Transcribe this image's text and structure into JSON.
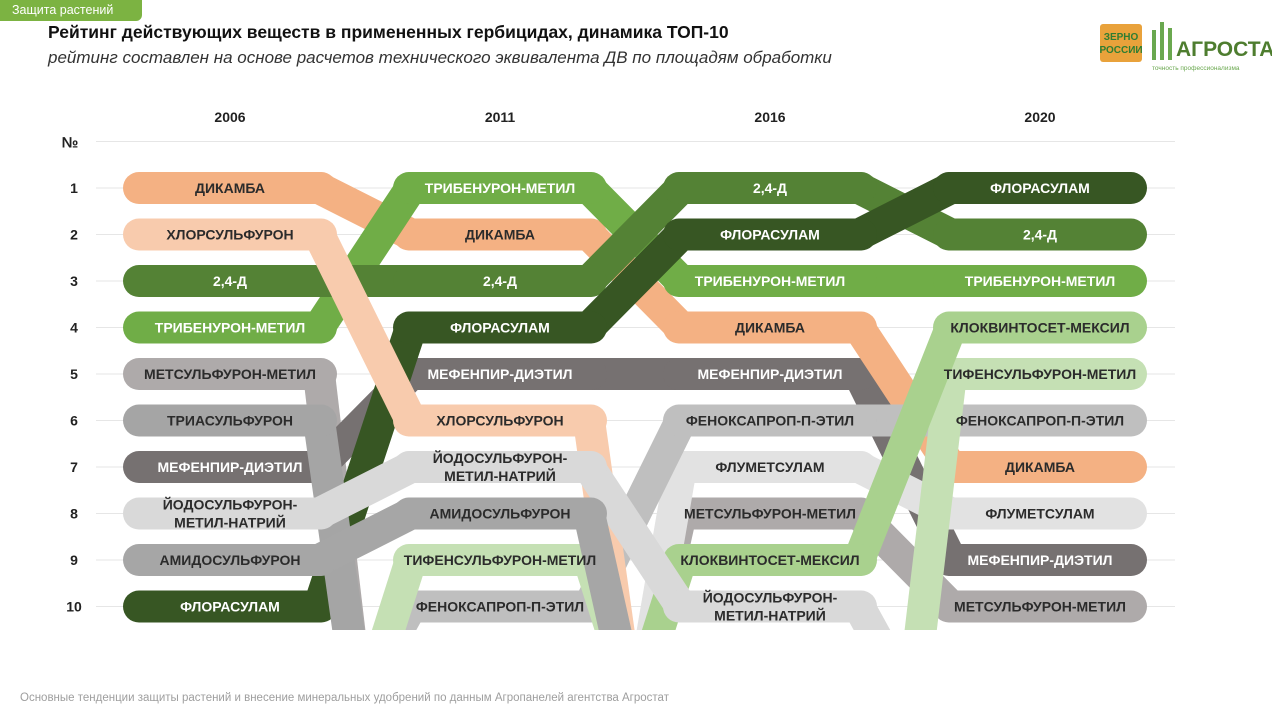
{
  "header": {
    "section_tag": "Защита растений",
    "title": "Рейтинг действующих веществ в примененных гербицидах, динамика ТОП-10",
    "subtitle": "рейтинг составлен на основе расчетов технического эквивалента ДВ по площадям обработки"
  },
  "logo": {
    "zerno_line1": "ЗЕРНО",
    "zerno_line2": "РОССИИ",
    "brand": "АГРОСТАТ",
    "tagline": "точность профессионализма"
  },
  "footer": "Основные тенденции защиты растений и внесение минеральных удобрений  по данным Агропанелей агентства Агростат",
  "colors": {
    "ДИКАМБА": "#f4b183",
    "ХЛОРСУЛЬФУРОН": "#f8cbad",
    "2,4-Д": "#548235",
    "ТРИБЕНУРОН-МЕТИЛ": "#70ad47",
    "МЕТСУЛЬФУРОН-МЕТИЛ": "#aeaaaa",
    "ТРИАСУЛЬФУРОН": "#a5a5a5",
    "МЕФЕНПИР-ДИЭТИЛ": "#767171",
    "ЙОДОСУЛЬФУРОН-МЕТИЛ-НАТРИЙ": "#d9d9d9",
    "АМИДОСУЛЬФУРОН": "#a6a6a6",
    "ФЛОРАСУЛАМ": "#375623",
    "ТИФЕНСУЛЬФУРОН-МЕТИЛ": "#c5e0b4",
    "ФЕНОКСАПРОП-П-ЭТИЛ": "#bfbfbf",
    "ФЛУМЕТСУЛАМ": "#e2e2e2",
    "КЛОКВИНТОСЕТ-МЕКСИЛ": "#a9d18e"
  },
  "chart_data": {
    "type": "bump",
    "rank_label": "№",
    "years": [
      "2006",
      "2011",
      "2016",
      "2020"
    ],
    "ranks": [
      "1",
      "2",
      "3",
      "4",
      "5",
      "6",
      "7",
      "8",
      "9",
      "10"
    ],
    "rankings": {
      "2006": [
        "ДИКАМБА",
        "ХЛОРСУЛЬФУРОН",
        "2,4-Д",
        "ТРИБЕНУРОН-МЕТИЛ",
        "МЕТСУЛЬФУРОН-МЕТИЛ",
        "ТРИАСУЛЬФУРОН",
        "МЕФЕНПИР-ДИЭТИЛ",
        "ЙОДОСУЛЬФУРОН-МЕТИЛ-НАТРИЙ",
        "АМИДОСУЛЬФУРОН",
        "ФЛОРАСУЛАМ"
      ],
      "2011": [
        "ТРИБЕНУРОН-МЕТИЛ",
        "ДИКАМБА",
        "2,4-Д",
        "ФЛОРАСУЛАМ",
        "МЕФЕНПИР-ДИЭТИЛ",
        "ХЛОРСУЛЬФУРОН",
        "ЙОДОСУЛЬФУРОН-МЕТИЛ-НАТРИЙ",
        "АМИДОСУЛЬФУРОН",
        "ТИФЕНСУЛЬФУРОН-МЕТИЛ",
        "ФЕНОКСАПРОП-П-ЭТИЛ"
      ],
      "2016": [
        "2,4-Д",
        "ФЛОРАСУЛАМ",
        "ТРИБЕНУРОН-МЕТИЛ",
        "ДИКАМБА",
        "МЕФЕНПИР-ДИЭТИЛ",
        "ФЕНОКСАПРОП-П-ЭТИЛ",
        "ФЛУМЕТСУЛАМ",
        "МЕТСУЛЬФУРОН-МЕТИЛ",
        "КЛОКВИНТОСЕТ-МЕКСИЛ",
        "ЙОДОСУЛЬФУРОН-МЕТИЛ-НАТРИЙ"
      ],
      "2020": [
        "ФЛОРАСУЛАМ",
        "2,4-Д",
        "ТРИБЕНУРОН-МЕТИЛ",
        "КЛОКВИНТОСЕТ-МЕКСИЛ",
        "ТИФЕНСУЛЬФУРОН-МЕТИЛ",
        "ФЕНОКСАПРОП-П-ЭТИЛ",
        "ДИКАМБА",
        "ФЛУМЕТСУЛАМ",
        "МЕФЕНПИР-ДИЭТИЛ",
        "МЕТСУЛЬФУРОН-МЕТИЛ"
      ]
    },
    "cell_labels": {
      "2006": [
        "ДИКАМБА",
        "ХЛОРСУЛЬФУРОН",
        "2,4-Д",
        "ТРИБЕНУРОН-МЕТИЛ",
        "МЕТСУЛЬФУРОН-МЕТИЛ",
        "ТРИАСУЛЬФУРОН",
        "МЕФЕНПИР-ДИЭТИЛ",
        "ЙОДОСУЛЬФУРОН-\nМЕТИЛ-НАТРИЙ",
        "АМИДОСУЛЬФУРОН",
        "ФЛОРАСУЛАМ"
      ],
      "2011": [
        "ТРИБЕНУРОН-МЕТИЛ",
        "ДИКАМБА",
        "2,4-Д",
        "ФЛОРАСУЛАМ",
        "МЕФЕНПИР-ДИЭТИЛ",
        "ХЛОРСУЛЬФУРОН",
        "ЙОДОСУЛЬФУРОН-\nМЕТИЛ-НАТРИЙ",
        "АМИДОСУЛЬФУРОН",
        "ТИФЕНСУЛЬФУРОН-МЕТИЛ",
        "ФЕНОКСАПРОП-П-ЭТИЛ"
      ],
      "2016": [
        "2,4-Д",
        "ФЛОРАСУЛАМ",
        "ТРИБЕНУРОН-МЕТИЛ",
        "ДИКАМБА",
        "МЕФЕНПИР-ДИЭТИЛ",
        "ФЕНОКСАПРОП-П-ЭТИЛ",
        "ФЛУМЕТСУЛАМ",
        "МЕТСУЛЬФУРОН-МЕТИЛ",
        "КЛОКВИНТОСЕТ-МЕКСИЛ",
        "ЙОДОСУЛЬФУРОН-\nМЕТИЛ-НАТРИЙ"
      ],
      "2020": [
        "ФЛОРАСУЛАМ",
        "2,4-Д",
        "ТРИБЕНУРОН-МЕТИЛ",
        "КЛОКВИНТОСЕТ-МЕКСИЛ",
        "ТИФЕНСУЛЬФУРОН-МЕТИЛ",
        "ФЕНОКСАПРОП-П-ЭТИЛ",
        "ДИКАМБА",
        "ФЛУМЕТСУЛАМ",
        "МЕФЕНПИР-ДИЭТИЛ",
        "МЕТСУЛЬФУРОН-МЕТИЛ"
      ]
    }
  }
}
